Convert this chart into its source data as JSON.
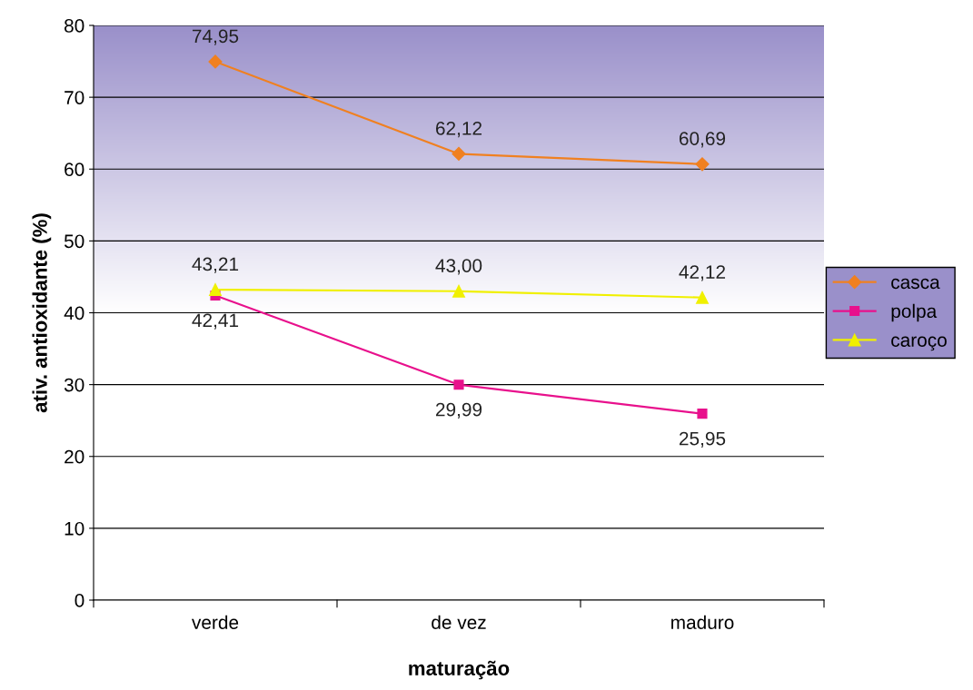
{
  "chart_data": {
    "type": "line",
    "xlabel": "maturação",
    "ylabel": "ativ. antioxidante (%)",
    "categories": [
      "verde",
      "de vez",
      "maduro"
    ],
    "series": [
      {
        "name": "casca",
        "color": "#f08020",
        "marker": "diamond",
        "values": [
          74.95,
          62.12,
          60.69
        ],
        "value_labels": [
          "74,95",
          "62,12",
          "60,69"
        ]
      },
      {
        "name": "polpa",
        "color": "#e8108c",
        "marker": "square",
        "values": [
          42.41,
          29.99,
          25.95
        ],
        "value_labels": [
          "42,41",
          "29,99",
          "25,95"
        ]
      },
      {
        "name": "caroço",
        "color": "#f0f000",
        "marker": "triangle",
        "values": [
          43.21,
          43.0,
          42.12
        ],
        "value_labels": [
          "43,21",
          "43,00",
          "42,12"
        ]
      }
    ],
    "ylim": [
      0,
      80
    ],
    "yticks": [
      0,
      10,
      20,
      30,
      40,
      50,
      60,
      70,
      80
    ],
    "grid": "y",
    "legend": "right"
  }
}
